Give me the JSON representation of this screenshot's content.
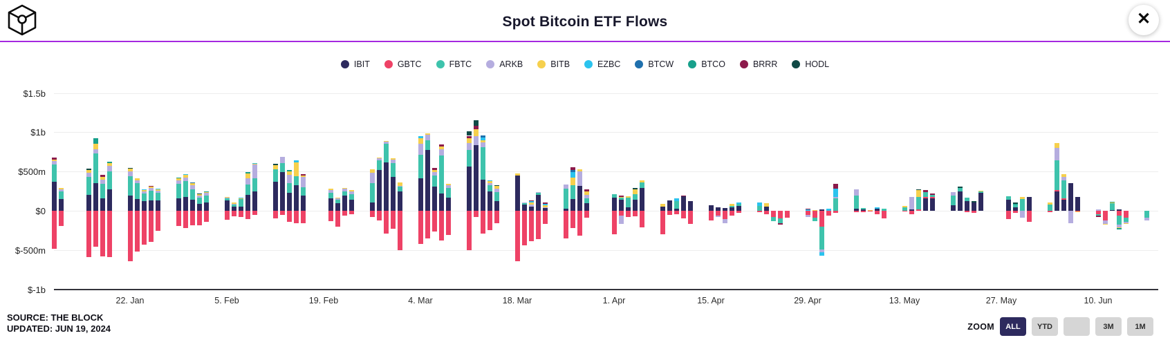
{
  "header": {
    "title": "Spot Bitcoin ETF Flows",
    "close_glyph": "✕",
    "divider_color": "#A428E0"
  },
  "footer": {
    "source": "SOURCE: THE BLOCK",
    "updated": "UPDATED: JUN 19, 2024"
  },
  "zoom_controls": {
    "label": "ZOOM",
    "buttons": [
      {
        "label": "ALL",
        "active": true
      },
      {
        "label": "YTD",
        "active": false
      },
      {
        "label": "",
        "active": false
      },
      {
        "label": "3M",
        "active": false
      },
      {
        "label": "1M",
        "active": false
      }
    ]
  },
  "chart_data": {
    "type": "bar",
    "stacked": true,
    "title": "Spot Bitcoin ETF Flows",
    "unit": "millions USD",
    "x_unit": "days since 2024-01-08 (t), trading days only",
    "ylim": [
      -1000,
      1500
    ],
    "grid": true,
    "legend_position": "top-center",
    "series_order": [
      "IBIT",
      "GBTC",
      "FBTC",
      "ARKB",
      "BITB",
      "EZBC",
      "BTCW",
      "BTCO",
      "BRRR",
      "HODL"
    ],
    "series_colors": {
      "IBIT": "#2d2a5e",
      "GBTC": "#ee4266",
      "FBTC": "#3ec3ac",
      "ARKB": "#b5addf",
      "BITB": "#f6d04d",
      "EZBC": "#2bc3ee",
      "BTCW": "#1f70ad",
      "BTCO": "#17a08b",
      "BRRR": "#8c1a4b",
      "HODL": "#104a46"
    },
    "yticks": [
      {
        "label": "$1.5b",
        "value": 1500
      },
      {
        "label": "$1b",
        "value": 1000
      },
      {
        "label": "$500m",
        "value": 500
      },
      {
        "label": "$0",
        "value": 0
      },
      {
        "label": "$-500m",
        "value": -500
      },
      {
        "label": "$-1b",
        "value": -1000
      }
    ],
    "xticks": [
      {
        "label": "22. Jan",
        "t": 14
      },
      {
        "label": "5. Feb",
        "t": 28
      },
      {
        "label": "19. Feb",
        "t": 42
      },
      {
        "label": "4. Mar",
        "t": 56
      },
      {
        "label": "18. Mar",
        "t": 70
      },
      {
        "label": "1. Apr",
        "t": 84
      },
      {
        "label": "15. Apr",
        "t": 98
      },
      {
        "label": "29. Apr",
        "t": 112
      },
      {
        "label": "13. May",
        "t": 126
      },
      {
        "label": "27. May",
        "t": 140
      },
      {
        "label": "10. Jun",
        "t": 154
      }
    ],
    "bars": [
      {
        "t": 3,
        "s": {
          "IBIT": 372,
          "FBTC": 220,
          "ARKB": 38,
          "BITB": 22,
          "BRRR": 25,
          "GBTC": -480
        }
      },
      {
        "t": 4,
        "s": {
          "IBIT": 150,
          "FBTC": 95,
          "ARKB": 30,
          "BITB": 15,
          "GBTC": -190
        }
      },
      {
        "t": 8,
        "s": {
          "IBIT": 205,
          "FBTC": 225,
          "ARKB": 55,
          "BITB": 30,
          "HODL": 25,
          "GBTC": -594
        }
      },
      {
        "t": 9,
        "s": {
          "IBIT": 355,
          "FBTC": 380,
          "ARKB": 45,
          "BITB": 70,
          "BTCO": 70,
          "GBTC": -460
        }
      },
      {
        "t": 10,
        "s": {
          "IBIT": 160,
          "FBTC": 180,
          "ARKB": 55,
          "BITB": 35,
          "BRRR": 25,
          "GBTC": -582
        }
      },
      {
        "t": 11,
        "s": {
          "IBIT": 270,
          "FBTC": 230,
          "ARKB": 70,
          "BITB": 40,
          "BTCO": 15,
          "GBTC": -590
        }
      },
      {
        "t": 14,
        "s": {
          "IBIT": 190,
          "FBTC": 250,
          "ARKB": 60,
          "BITB": 35,
          "HODL": 12,
          "GBTC": -640
        }
      },
      {
        "t": 15,
        "s": {
          "IBIT": 150,
          "FBTC": 200,
          "ARKB": 40,
          "BITB": 20,
          "GBTC": -515
        }
      },
      {
        "t": 16,
        "s": {
          "IBIT": 120,
          "FBTC": 100,
          "ARKB": 30,
          "BITB": 15,
          "EZBC": 10,
          "GBTC": -429
        }
      },
      {
        "t": 17,
        "s": {
          "IBIT": 135,
          "FBTC": 120,
          "ARKB": 35,
          "BITB": 20,
          "BRRR": 10,
          "GBTC": -394
        }
      },
      {
        "t": 18,
        "s": {
          "IBIT": 130,
          "FBTC": 100,
          "ARKB": 25,
          "BITB": 15,
          "EZBC": 8,
          "GBTC": -255
        }
      },
      {
        "t": 21,
        "s": {
          "IBIT": 160,
          "FBTC": 180,
          "ARKB": 45,
          "BITB": 25,
          "BTCO": 10,
          "GBTC": -192
        }
      },
      {
        "t": 22,
        "s": {
          "IBIT": 175,
          "FBTC": 200,
          "ARKB": 50,
          "BITB": 30,
          "EZBC": 10,
          "GBTC": -220
        }
      },
      {
        "t": 23,
        "s": {
          "IBIT": 145,
          "FBTC": 130,
          "ARKB": 50,
          "BITB": 30,
          "BTCW": 10,
          "GBTC": -187
        }
      },
      {
        "t": 24,
        "s": {
          "IBIT": 90,
          "FBTC": 80,
          "ARKB": 25,
          "BITB": 15,
          "HODL": 7,
          "GBTC": -182
        }
      },
      {
        "t": 25,
        "s": {
          "IBIT": 105,
          "FBTC": 90,
          "ARKB": 30,
          "BITB": 12,
          "BTCO": 8,
          "GBTC": -145
        }
      },
      {
        "t": 28,
        "s": {
          "IBIT": 130,
          "FBTC": 28,
          "ARKB": 12,
          "BITB": 8,
          "GBTC": -112
        }
      },
      {
        "t": 29,
        "s": {
          "IBIT": 56,
          "FBTC": 25,
          "ARKB": 8,
          "BITB": 18,
          "GBTC": -73
        }
      },
      {
        "t": 30,
        "s": {
          "IBIT": 56,
          "FBTC": 90,
          "ARKB": 10,
          "BITB": 6,
          "EZBC": 6,
          "GBTC": -81
        }
      },
      {
        "t": 31,
        "s": {
          "IBIT": 204,
          "FBTC": 128,
          "ARKB": 80,
          "BITB": 60,
          "BTCO": 20,
          "GBTC": -102
        }
      },
      {
        "t": 32,
        "s": {
          "IBIT": 250,
          "FBTC": 160,
          "ARKB": 180,
          "BITB": 12,
          "EZBC": 8,
          "GBTC": -51
        }
      },
      {
        "t": 35,
        "s": {
          "IBIT": 374,
          "FBTC": 152,
          "BITB": 55,
          "HODL": 20,
          "GBTC": -95
        }
      },
      {
        "t": 36,
        "s": {
          "IBIT": 493,
          "FBTC": 110,
          "ARKB": 80,
          "GBTC": -57
        }
      },
      {
        "t": 37,
        "s": {
          "IBIT": 225,
          "FBTC": 130,
          "ARKB": 105,
          "BITB": 40,
          "BTCO": 15,
          "GBTC": -145
        }
      },
      {
        "t": 38,
        "s": {
          "IBIT": 330,
          "FBTC": 110,
          "BITB": 180,
          "EZBC": 25,
          "GBTC": -158
        }
      },
      {
        "t": 39,
        "s": {
          "IBIT": 191,
          "FBTC": 106,
          "ARKB": 130,
          "BITB": 24,
          "BRRR": 12,
          "GBTC": -160
        }
      },
      {
        "t": 43,
        "s": {
          "IBIT": 155,
          "FBTC": 75,
          "ARKB": 35,
          "BITB": 15,
          "GBTC": -136
        }
      },
      {
        "t": 44,
        "s": {
          "IBIT": 100,
          "FBTC": 40,
          "ARKB": 20,
          "BITB": 10,
          "GBTC": -199
        }
      },
      {
        "t": 45,
        "s": {
          "IBIT": 190,
          "FBTC": 60,
          "ARKB": 30,
          "BITB": 12,
          "GBTC": -60
        }
      },
      {
        "t": 46,
        "s": {
          "IBIT": 140,
          "FBTC": 70,
          "ARKB": 35,
          "BITB": 18,
          "GBTC": -45
        }
      },
      {
        "t": 49,
        "s": {
          "IBIT": 110,
          "FBTC": 245,
          "ARKB": 130,
          "BITB": 45,
          "GBTC": -75
        }
      },
      {
        "t": 50,
        "s": {
          "IBIT": 520,
          "FBTC": 120,
          "ARKB": 30,
          "BITB": 12,
          "GBTC": -125
        }
      },
      {
        "t": 51,
        "s": {
          "IBIT": 612,
          "FBTC": 245,
          "ARKB": 20,
          "BITB": 12,
          "GBTC": -290
        }
      },
      {
        "t": 52,
        "s": {
          "IBIT": 430,
          "FBTC": 180,
          "ARKB": 40,
          "BITB": 20,
          "GBTC": -230
        }
      },
      {
        "t": 53,
        "s": {
          "IBIT": 250,
          "FBTC": 60,
          "ARKB": 10,
          "BITB": 45,
          "GBTC": -500
        }
      },
      {
        "t": 56,
        "s": {
          "IBIT": 410,
          "FBTC": 300,
          "ARKB": 140,
          "BITB": 75,
          "EZBC": 25,
          "GBTC": -420
        }
      },
      {
        "t": 57,
        "s": {
          "IBIT": 775,
          "FBTC": 120,
          "ARKB": 70,
          "BITB": 20,
          "GBTC": -350
        }
      },
      {
        "t": 58,
        "s": {
          "IBIT": 305,
          "FBTC": 145,
          "ARKB": 40,
          "BITB": 25,
          "BRRR": 30,
          "GBTC": -265
        }
      },
      {
        "t": 59,
        "s": {
          "IBIT": 220,
          "FBTC": 480,
          "ARKB": 80,
          "BITB": 40,
          "BRRR": 25,
          "GBTC": -380
        }
      },
      {
        "t": 60,
        "s": {
          "IBIT": 170,
          "FBTC": 120,
          "ARKB": 40,
          "BITB": 15,
          "GBTC": -310
        }
      },
      {
        "t": 63,
        "s": {
          "IBIT": 560,
          "FBTC": 215,
          "ARKB": 90,
          "BITB": 60,
          "BRRR": 30,
          "HODL": 55,
          "GBTC": -505
        }
      },
      {
        "t": 64,
        "s": {
          "IBIT": 835,
          "ARKB": 120,
          "BITB": 80,
          "BRRR": 45,
          "HODL": 70,
          "GBTC": -80
        }
      },
      {
        "t": 65,
        "s": {
          "IBIT": 395,
          "FBTC": 415,
          "ARKB": 60,
          "BITB": 30,
          "EZBC": 35,
          "BTCW": 25,
          "GBTC": -290
        }
      },
      {
        "t": 66,
        "s": {
          "IBIT": 250,
          "FBTC": 75,
          "ARKB": 30,
          "BITB": 20,
          "EZBC": 15,
          "GBTC": -250
        }
      },
      {
        "t": 67,
        "s": {
          "IBIT": 125,
          "FBTC": 110,
          "ARKB": 50,
          "BITB": 30,
          "HODL": 15,
          "GBTC": -160
        }
      },
      {
        "t": 70,
        "s": {
          "IBIT": 451,
          "BITB": 20,
          "GBTC": -640
        }
      },
      {
        "t": 71,
        "s": {
          "IBIT": 76,
          "FBTC": 20,
          "ARKB": 10,
          "GBTC": -440
        }
      },
      {
        "t": 72,
        "s": {
          "IBIT": 50,
          "ARKB": 30,
          "BITB": 30,
          "EZBC": 15,
          "BRRR": 10,
          "GBTC": -390
        }
      },
      {
        "t": 73,
        "s": {
          "IBIT": 200,
          "FBTC": 30,
          "ARKB": 10,
          "GBTC": -365
        }
      },
      {
        "t": 74,
        "s": {
          "IBIT": 35,
          "ARKB": 10,
          "BITB": 25,
          "EZBC": 20,
          "BRRR": 15,
          "GBTC": -170
        }
      },
      {
        "t": 77,
        "s": {
          "IBIT": 30,
          "FBTC": 250,
          "ARKB": 55,
          "GBTC": -350
        }
      },
      {
        "t": 78,
        "s": {
          "IBIT": 150,
          "FBTC": 180,
          "BITB": 90,
          "EZBC": 70,
          "BTCW": 25,
          "BRRR": 40,
          "GBTC": -220
        }
      },
      {
        "t": 79,
        "s": {
          "IBIT": 320,
          "ARKB": 180,
          "BITB": 30,
          "GBTC": -320
        }
      },
      {
        "t": 80,
        "s": {
          "IBIT": 95,
          "FBTC": 60,
          "ARKB": 50,
          "BITB": 40,
          "BRRR": 25,
          "GBTC": -90
        }
      },
      {
        "t": 84,
        "s": {
          "IBIT": 165,
          "FBTC": 45,
          "GBTC": -300
        }
      },
      {
        "t": 85,
        "s": {
          "IBIT": 145,
          "FBTC": 20,
          "BITB": 15,
          "BRRR": 10,
          "GBTC": -60,
          "ARKB": -110
        }
      },
      {
        "t": 86,
        "s": {
          "IBIT": 40,
          "FBTC": 130,
          "BITB": 12,
          "GBTC": -75
        }
      },
      {
        "t": 87,
        "s": {
          "IBIT": 140,
          "FBTC": 70,
          "BITB": 60,
          "HODL": 20,
          "GBTC": -70
        }
      },
      {
        "t": 88,
        "s": {
          "IBIT": 290,
          "FBTC": 75,
          "BITB": 25,
          "GBTC": -210
        }
      },
      {
        "t": 91,
        "s": {
          "IBIT": 50,
          "BITB": 35,
          "GBTC": -300
        }
      },
      {
        "t": 92,
        "s": {
          "IBIT": 128,
          "GBTC": -50
        }
      },
      {
        "t": 93,
        "s": {
          "IBIT": 30,
          "FBTC": 90,
          "EZBC": 40,
          "GBTC": -45
        }
      },
      {
        "t": 94,
        "s": {
          "IBIT": 185,
          "BRRR": 12,
          "GBTC": -100
        }
      },
      {
        "t": 95,
        "s": {
          "IBIT": 120,
          "GBTC": -170
        }
      },
      {
        "t": 98,
        "s": {
          "IBIT": 70,
          "GBTC": -120
        }
      },
      {
        "t": 99,
        "s": {
          "IBIT": 40,
          "GBTC": -60,
          "ARKB": -20
        }
      },
      {
        "t": 100,
        "s": {
          "IBIT": 35,
          "GBTC": -110,
          "ARKB": -50
        }
      },
      {
        "t": 101,
        "s": {
          "IBIT": 45,
          "FBTC": 18,
          "BITB": 25,
          "GBTC": -60
        }
      },
      {
        "t": 102,
        "s": {
          "IBIT": 60,
          "FBTC": 30,
          "EZBC": 18,
          "GBTC": -30
        }
      },
      {
        "t": 105,
        "s": {
          "FBTC": 60,
          "EZBC": 45,
          "GBTC": -15
        }
      },
      {
        "t": 106,
        "s": {
          "IBIT": 55,
          "BITB": 40,
          "GBTC": -40
        }
      },
      {
        "t": 107,
        "s": {
          "GBTC": -80,
          "FBTC": -50
        }
      },
      {
        "t": 108,
        "s": {
          "GBTC": -100,
          "FBTC": -60,
          "BRRR": -20
        }
      },
      {
        "t": 109,
        "s": {
          "GBTC": -85
        }
      },
      {
        "t": 112,
        "s": {
          "EZBC": 15,
          "BRRR": 10,
          "GBTC": -50,
          "ARKB": -30
        }
      },
      {
        "t": 113,
        "s": {
          "BITB": 12,
          "GBTC": -90,
          "FBTC": -45
        }
      },
      {
        "t": 114,
        "s": {
          "IBIT": 20,
          "GBTC": -205,
          "FBTC": -290,
          "ARKB": -35,
          "EZBC": -40
        }
      },
      {
        "t": 115,
        "s": {
          "EZBC": 30,
          "GBTC": -60
        }
      },
      {
        "t": 116,
        "s": {
          "FBTC": 155,
          "ARKB": 25,
          "EZBC": 105,
          "BRRR": 60,
          "GBTC": -30
        }
      },
      {
        "t": 119,
        "s": {
          "IBIT": 25,
          "FBTC": 170,
          "ARKB": 75,
          "GBTC": -20
        }
      },
      {
        "t": 120,
        "s": {
          "IBIT": 20,
          "FBTC": 15,
          "GBTC": -20
        }
      },
      {
        "t": 121,
        "s": {
          "BITB": 12,
          "GBTC": -10
        }
      },
      {
        "t": 122,
        "s": {
          "IBIT": 25,
          "EZBC": 20,
          "GBTC": -40
        }
      },
      {
        "t": 123,
        "s": {
          "FBTC": 25,
          "GBTC": -100
        }
      },
      {
        "t": 126,
        "s": {
          "FBTC": 40,
          "BITB": 25,
          "GBTC": -10
        }
      },
      {
        "t": 127,
        "s": {
          "IBIT": 15,
          "ARKB": 160,
          "GBTC": -40
        }
      },
      {
        "t": 128,
        "s": {
          "GBTC": 15,
          "FBTC": 160,
          "BITB": 85,
          "HODL": 12
        }
      },
      {
        "t": 129,
        "s": {
          "IBIT": 160,
          "GBTC": 15,
          "FBTC": 60,
          "BRRR": 25
        }
      },
      {
        "t": 130,
        "s": {
          "IBIT": 160,
          "GBTC": 12,
          "FBTC": 30,
          "BRRR": 15
        }
      },
      {
        "t": 133,
        "s": {
          "IBIT": 70,
          "FBTC": 120,
          "ARKB": 45
        }
      },
      {
        "t": 134,
        "s": {
          "IBIT": 250,
          "FBTC": 40,
          "HODL": 15
        }
      },
      {
        "t": 135,
        "s": {
          "IBIT": 120,
          "FBTC": 50,
          "GBTC": -15
        }
      },
      {
        "t": 136,
        "s": {
          "IBIT": 105,
          "HODL": 15,
          "GBTC": -25
        }
      },
      {
        "t": 137,
        "s": {
          "IBIT": 230,
          "FBTC": 15,
          "BITB": 12
        }
      },
      {
        "t": 141,
        "s": {
          "IBIT": 145,
          "FBTC": 40,
          "GBTC": -110
        }
      },
      {
        "t": 142,
        "s": {
          "IBIT": 40,
          "FBTC": 35,
          "BTCO": 15,
          "HODL": 12,
          "GBTC": -30
        }
      },
      {
        "t": 143,
        "s": {
          "FBTC": 150,
          "BITB": 30,
          "ARKB": -90
        }
      },
      {
        "t": 144,
        "s": {
          "IBIT": 180,
          "GBTC": -140
        }
      },
      {
        "t": 147,
        "s": {
          "FBTC": 80,
          "BITB": 25,
          "GBTC": -15
        }
      },
      {
        "t": 148,
        "s": {
          "IBIT": 250,
          "GBTC": 15,
          "FBTC": 380,
          "ARKB": 160,
          "BITB": 55
        }
      },
      {
        "t": 149,
        "s": {
          "IBIT": 145,
          "GBTC": 12,
          "FBTC": 230,
          "ARKB": 45,
          "BITB": 35
        }
      },
      {
        "t": 150,
        "s": {
          "IBIT": 350,
          "ARKB": -155
        }
      },
      {
        "t": 151,
        "s": {
          "IBIT": 175,
          "GBTC": -12,
          "BITB": -10
        }
      },
      {
        "t": 154,
        "s": {
          "ARKB": 15,
          "GBTC": -40,
          "FBTC": -20,
          "BRRR": -15
        }
      },
      {
        "t": 155,
        "s": {
          "GBTC": -120,
          "ARKB": -45,
          "BITB": -12
        }
      },
      {
        "t": 156,
        "s": {
          "IBIT": 10,
          "FBTC": 85,
          "BITB": 15,
          "BTCO": 8
        }
      },
      {
        "t": 157,
        "s": {
          "IBIT": 15,
          "GBTC": -65,
          "FBTC": -115,
          "ARKB": -35,
          "BITB": -8,
          "BTCO": -12
        }
      },
      {
        "t": 158,
        "s": {
          "GBTC": -85,
          "FBTC": -55,
          "ARKB": -20,
          "BITB": -10
        }
      },
      {
        "t": 161,
        "s": {
          "FBTC": -90,
          "ARKB": -30
        }
      }
    ]
  }
}
